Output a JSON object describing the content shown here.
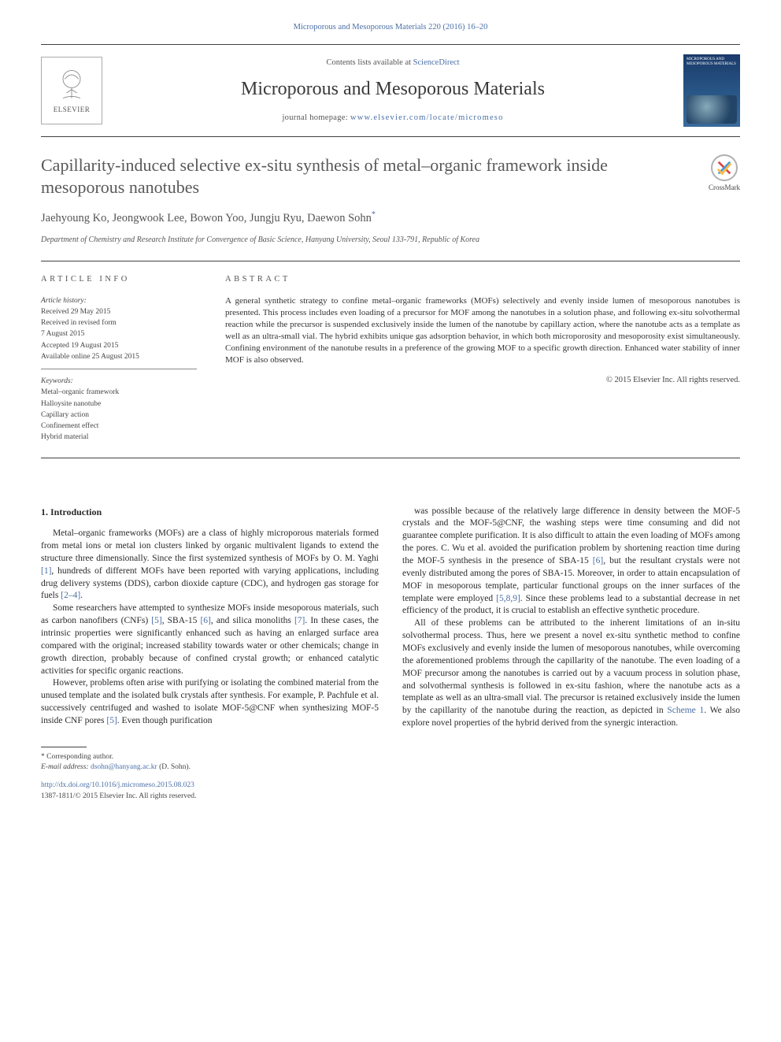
{
  "citation_line": "Microporous and Mesoporous Materials 220 (2016) 16–20",
  "masthead": {
    "contents_prefix": "Contents lists available at ",
    "contents_link": "ScienceDirect",
    "journal_name": "Microporous and Mesoporous Materials",
    "homepage_prefix": "journal homepage: ",
    "homepage_url": "www.elsevier.com/locate/micromeso",
    "publisher_word": "ELSEVIER",
    "cover_caption": "MICROPOROUS AND MESOPOROUS MATERIALS"
  },
  "crossmark_label": "CrossMark",
  "title": "Capillarity-induced selective ex-situ synthesis of metal–organic framework inside mesoporous nanotubes",
  "authors_line": "Jaehyoung Ko, Jeongwook Lee, Bowon Yoo, Jungju Ryu, Daewon Sohn",
  "corr_marker": "*",
  "affiliation": "Department of Chemistry and Research Institute for Convergence of Basic Science, Hanyang University, Seoul 133-791, Republic of Korea",
  "labels": {
    "article_info": "ARTICLE INFO",
    "abstract": "ABSTRACT",
    "history": "Article history:",
    "keywords": "Keywords:"
  },
  "history": [
    "Received 29 May 2015",
    "Received in revised form",
    "7 August 2015",
    "Accepted 19 August 2015",
    "Available online 25 August 2015"
  ],
  "keywords": [
    "Metal–organic framework",
    "Halloysite nanotube",
    "Capillary action",
    "Confinement effect",
    "Hybrid material"
  ],
  "abstract": "A general synthetic strategy to confine metal–organic frameworks (MOFs) selectively and evenly inside lumen of mesoporous nanotubes is presented. This process includes even loading of a precursor for MOF among the nanotubes in a solution phase, and following ex-situ solvothermal reaction while the precursor is suspended exclusively inside the lumen of the nanotube by capillary action, where the nanotube acts as a template as well as an ultra-small vial. The hybrid exhibits unique gas adsorption behavior, in which both microporosity and mesoporosity exist simultaneously. Confining environment of the nanotube results in a preference of the growing MOF to a specific growth direction. Enhanced water stability of inner MOF is also observed.",
  "copyright": "© 2015 Elsevier Inc. All rights reserved.",
  "body": {
    "h1": "1. Introduction",
    "left": [
      "Metal–organic frameworks (MOFs) are a class of highly microporous materials formed from metal ions or metal ion clusters linked by organic multivalent ligands to extend the structure three dimensionally. Since the first systemized synthesis of MOFs by O. M. Yaghi [1], hundreds of different MOFs have been reported with varying applications, including drug delivery systems (DDS), carbon dioxide capture (CDC), and hydrogen gas storage for fuels [2–4].",
      "Some researchers have attempted to synthesize MOFs inside mesoporous materials, such as carbon nanofibers (CNFs) [5], SBA-15 [6], and silica monoliths [7]. In these cases, the intrinsic properties were significantly enhanced such as having an enlarged surface area compared with the original; increased stability towards water or other chemicals; change in growth direction, probably because of confined crystal growth; or enhanced catalytic activities for specific organic reactions.",
      "However, problems often arise with purifying or isolating the combined material from the unused template and the isolated bulk crystals after synthesis. For example, P. Pachfule et al. successively centrifuged and washed to isolate MOF-5@CNF when synthesizing MOF-5 inside CNF pores [5]. Even though purification"
    ],
    "right": [
      "was possible because of the relatively large difference in density between the MOF-5 crystals and the MOF-5@CNF, the washing steps were time consuming and did not guarantee complete purification. It is also difficult to attain the even loading of MOFs among the pores. C. Wu et al. avoided the purification problem by shortening reaction time during the MOF-5 synthesis in the presence of SBA-15 [6], but the resultant crystals were not evenly distributed among the pores of SBA-15. Moreover, in order to attain encapsulation of MOF in mesoporous template, particular functional groups on the inner surfaces of the template were employed [5,8,9]. Since these problems lead to a substantial decrease in net efficiency of the product, it is crucial to establish an effective synthetic procedure.",
      "All of these problems can be attributed to the inherent limitations of an in-situ solvothermal process. Thus, here we present a novel ex-situ synthetic method to confine MOFs exclusively and evenly inside the lumen of mesoporous nanotubes, while overcoming the aforementioned problems through the capillarity of the nanotube. The even loading of a MOF precursor among the nanotubes is carried out by a vacuum process in solution phase, and solvothermal synthesis is followed in ex-situ fashion, where the nanotube acts as a template as well as an ultra-small vial. The precursor is retained exclusively inside the lumen by the capillarity of the nanotube during the reaction, as depicted in Scheme 1. We also explore novel properties of the hybrid derived from the synergic interaction."
    ]
  },
  "footnotes": {
    "corr_label": "* Corresponding author.",
    "email_label": "E-mail address: ",
    "email": "dsohn@hanyang.ac.kr",
    "email_person": " (D. Sohn)."
  },
  "doi": {
    "url": "http://dx.doi.org/10.1016/j.micromeso.2015.08.023",
    "issn_line": "1387-1811/© 2015 Elsevier Inc. All rights reserved."
  },
  "colors": {
    "link": "#4a6fa5",
    "rule": "#404040",
    "text": "#2a2a2a",
    "muted": "#555555"
  },
  "ref_markers": {
    "r1": "[1]",
    "r24": "[2–4]",
    "r5": "[5]",
    "r6": "[6]",
    "r7": "[7]",
    "r589": "[5,8,9]",
    "scheme1": "Scheme 1"
  }
}
